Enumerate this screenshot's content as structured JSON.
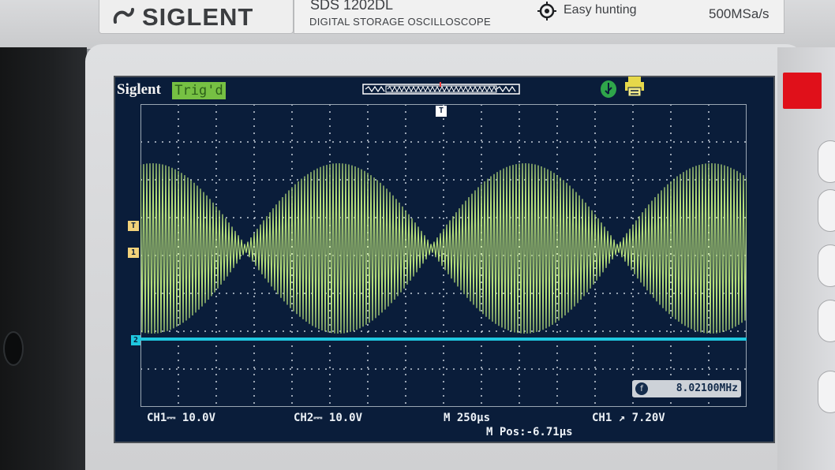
{
  "device": {
    "brand": "SIGLENT",
    "model": "SDS 1202DL",
    "subtitle": "DIGITAL STORAGE OSCILLOSCOPE",
    "feature": "Easy hunting",
    "sample_rate": "500MSa/s"
  },
  "screen": {
    "logo": "Siglent",
    "trigger_status": "Trig'd",
    "ch1_marker": "1",
    "ch2_marker": "2",
    "trigger_level_marker": "T",
    "trigger_position_marker": "T",
    "frequency_counter_icon": "f",
    "frequency_counter": "8.02100MHz",
    "ch1_scale": "CH1⎓ 10.0V",
    "ch2_scale": "CH2⎓ 10.0V",
    "timebase": "M 250μs",
    "trigger_setting": "CH1 ↗ 7.20V",
    "horizontal_position": "M Pos:-6.71μs"
  },
  "colors": {
    "ch1_trace": "#b8e07a",
    "ch2_trace": "#1fc8e0",
    "screen_bg": "#0a1d3a",
    "trigd_bg": "#76c043"
  },
  "icons": {
    "usb": "usb-icon",
    "printer": "printer-icon",
    "easy_hunting": "crosshair-icon"
  }
}
